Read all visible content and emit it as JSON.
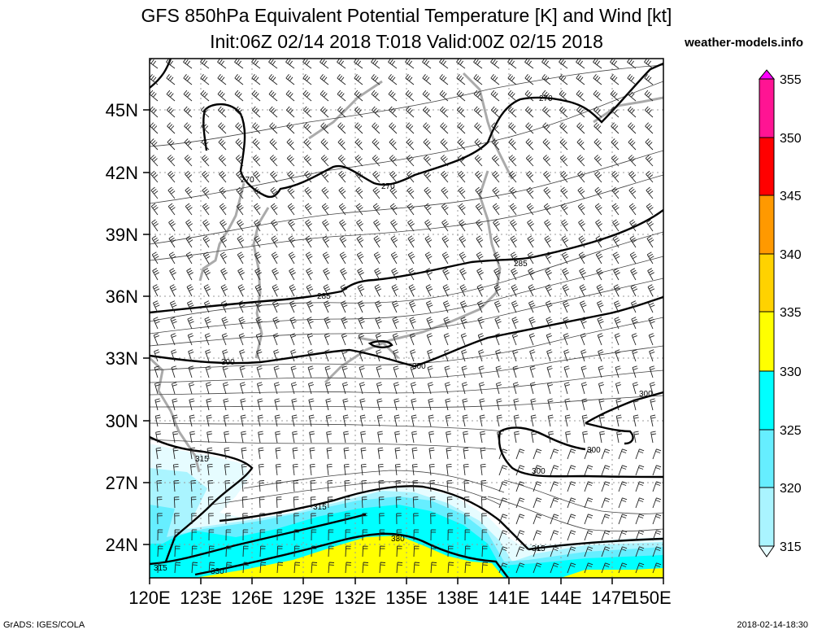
{
  "title_line1": "GFS 850hPa Equivalent Potential Temperature [K] and Wind [kt]",
  "title_line2": "Init:06Z 02/14 2018 T:018 Valid:00Z 02/15 2018",
  "site": "weather-models.info",
  "footer_left": "GrADS: IGES/COLA",
  "footer_right": "2018-02-14-18:30",
  "map": {
    "lon_range": [
      120,
      150
    ],
    "lat_range": [
      22.5,
      47.5
    ],
    "lat_labels": [
      "45N",
      "42N",
      "39N",
      "36N",
      "33N",
      "30N",
      "27N",
      "24N"
    ],
    "lat_values": [
      45,
      42,
      39,
      36,
      33,
      30,
      27,
      24
    ],
    "lon_labels": [
      "120E",
      "123E",
      "126E",
      "129E",
      "132E",
      "135E",
      "138E",
      "141E",
      "144E",
      "147E",
      "150E"
    ],
    "lon_values": [
      120,
      123,
      126,
      129,
      132,
      135,
      138,
      141,
      144,
      147,
      150
    ],
    "contour_labels": [
      "270",
      "270",
      "270",
      "285",
      "285",
      "300",
      "300",
      "300",
      "300",
      "300",
      "315",
      "315",
      "315",
      "315",
      "330",
      "330"
    ]
  },
  "colorbar": {
    "labels": [
      "355",
      "350",
      "345",
      "340",
      "335",
      "330",
      "325",
      "320",
      "315"
    ],
    "colors": [
      "#ff00ff",
      "#ff1493",
      "#ff0000",
      "#ff9900",
      "#ffd200",
      "#ffff00",
      "#00ffff",
      "#66eeff",
      "#aaf4ff",
      "#e6fcff"
    ]
  }
}
